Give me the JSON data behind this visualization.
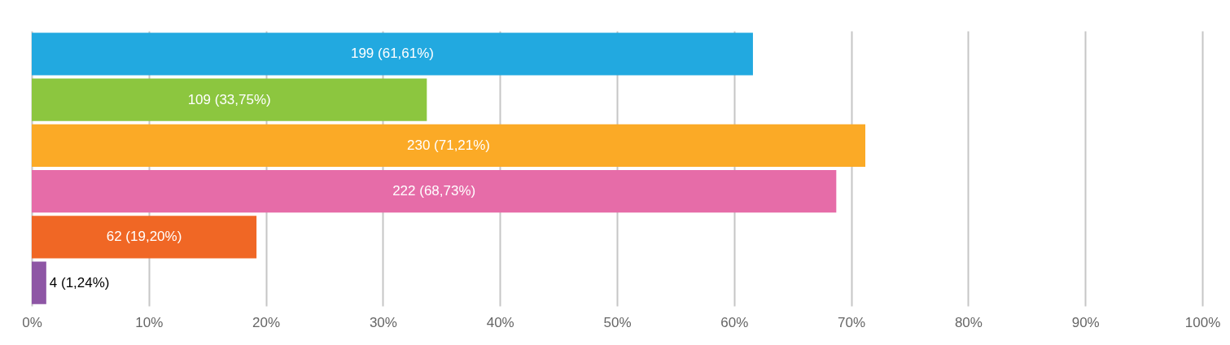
{
  "chart_data": {
    "type": "bar",
    "orientation": "horizontal",
    "categories": [
      null,
      null,
      null,
      null,
      null,
      null
    ],
    "values": [
      61.61,
      33.75,
      71.21,
      68.73,
      19.2,
      1.24
    ],
    "colors": [
      "#22a9e0",
      "#8cc63f",
      "#fbaa26",
      "#e66ca8",
      "#f06725",
      "#8e56a5"
    ],
    "value_labels": [
      "199 (61,61%)",
      "109 (33,75%)",
      "230 (71,21%)",
      "222 (68,73%)",
      "62 (19,20%)",
      "4 (1,24%)"
    ],
    "xlim": [
      0,
      100
    ],
    "xticks": [
      {
        "value": 0,
        "label": "0%"
      },
      {
        "value": 10,
        "label": "10%"
      },
      {
        "value": 20,
        "label": "20%"
      },
      {
        "value": 30,
        "label": "30%"
      },
      {
        "value": 40,
        "label": "40%"
      },
      {
        "value": 50,
        "label": "50%"
      },
      {
        "value": 60,
        "label": "60%"
      },
      {
        "value": 70,
        "label": "70%"
      },
      {
        "value": 80,
        "label": "80%"
      },
      {
        "value": 90,
        "label": "90%"
      },
      {
        "value": 100,
        "label": "100%"
      }
    ],
    "grid": "x",
    "tick_labels": "x"
  }
}
